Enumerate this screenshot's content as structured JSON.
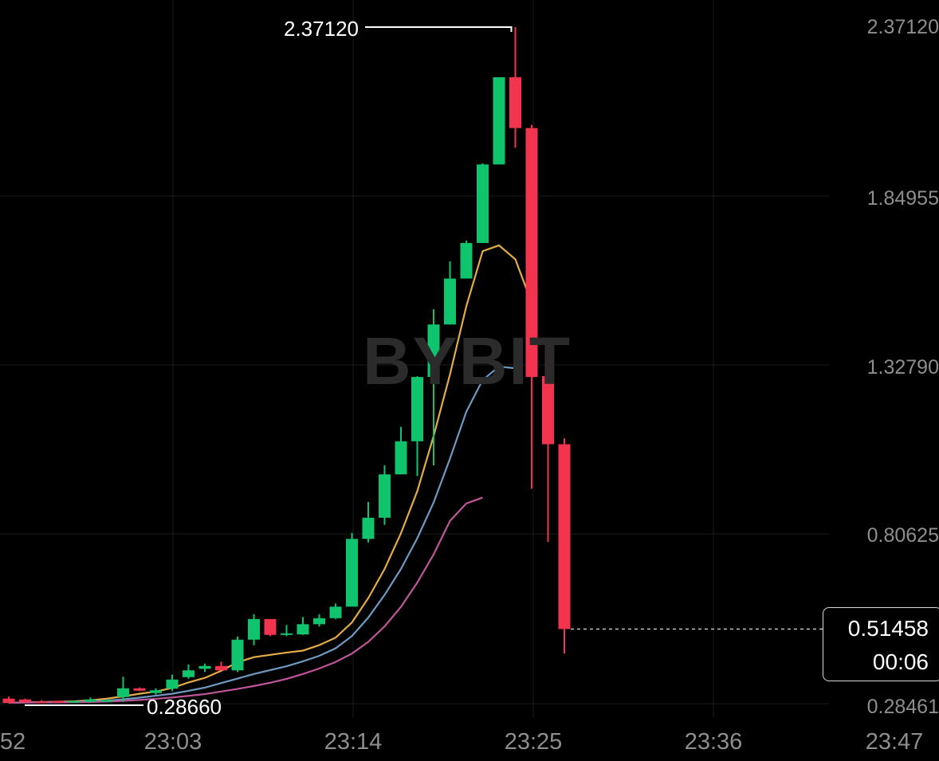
{
  "watermark": "BYBIT",
  "chart_data": {
    "type": "candlestick",
    "price_axis": [
      "2.37120",
      "1.84955",
      "1.32790",
      "0.80625",
      "0.28461"
    ],
    "time_axis": [
      "52",
      "23:03",
      "23:14",
      "23:25",
      "23:36",
      "23:47"
    ],
    "ylim": [
      0.28461,
      2.3712
    ],
    "grid": true,
    "annotations": {
      "high": "2.37120",
      "low": "0.28660"
    },
    "last_price": {
      "value": "0.51458",
      "countdown": "00:06"
    },
    "colors": {
      "up": "#10c46e",
      "down": "#f2344f",
      "ma_fast": "#e5ac44",
      "ma_mid": "#6d9bc3",
      "ma_slow": "#c0569a"
    },
    "candles": [
      {
        "o": 0.3001,
        "h": 0.3061,
        "l": 0.2866,
        "c": 0.2866
      },
      {
        "o": 0.2976,
        "h": 0.3001,
        "l": 0.2866,
        "c": 0.2902
      },
      {
        "o": 0.2914,
        "h": 0.2951,
        "l": 0.2878,
        "c": 0.289
      },
      {
        "o": 0.2927,
        "h": 0.2939,
        "l": 0.289,
        "c": 0.2914
      },
      {
        "o": 0.2902,
        "h": 0.2939,
        "l": 0.289,
        "c": 0.2927
      },
      {
        "o": 0.2902,
        "h": 0.3037,
        "l": 0.289,
        "c": 0.2976
      },
      {
        "o": 0.2939,
        "h": 0.2988,
        "l": 0.2914,
        "c": 0.2951
      },
      {
        "o": 0.3049,
        "h": 0.3675,
        "l": 0.2902,
        "c": 0.3319
      },
      {
        "o": 0.3319,
        "h": 0.3343,
        "l": 0.3232,
        "c": 0.3245
      },
      {
        "o": 0.3172,
        "h": 0.3319,
        "l": 0.3122,
        "c": 0.3257
      },
      {
        "o": 0.3306,
        "h": 0.3737,
        "l": 0.3233,
        "c": 0.3589
      },
      {
        "o": 0.3663,
        "h": 0.4056,
        "l": 0.3614,
        "c": 0.3872
      },
      {
        "o": 0.3921,
        "h": 0.4081,
        "l": 0.3823,
        "c": 0.4007
      },
      {
        "o": 0.4007,
        "h": 0.4142,
        "l": 0.3896,
        "c": 0.3872
      },
      {
        "o": 0.3872,
        "h": 0.4916,
        "l": 0.3823,
        "c": 0.4818
      },
      {
        "o": 0.4818,
        "h": 0.5603,
        "l": 0.4646,
        "c": 0.5456
      },
      {
        "o": 0.5456,
        "h": 0.5444,
        "l": 0.4929,
        "c": 0.4966
      },
      {
        "o": 0.4979,
        "h": 0.5272,
        "l": 0.4929,
        "c": 0.5014
      },
      {
        "o": 0.4979,
        "h": 0.5517,
        "l": 0.4966,
        "c": 0.5296
      },
      {
        "o": 0.5296,
        "h": 0.5603,
        "l": 0.5223,
        "c": 0.5481
      },
      {
        "o": 0.5481,
        "h": 0.5935,
        "l": 0.5456,
        "c": 0.5837
      },
      {
        "o": 0.5837,
        "h": 0.8111,
        "l": 0.5861,
        "c": 0.7926
      },
      {
        "o": 0.7926,
        "h": 0.9067,
        "l": 0.7816,
        "c": 0.8579
      },
      {
        "o": 0.8579,
        "h": 1.0195,
        "l": 0.8359,
        "c": 0.9917
      },
      {
        "o": 0.9917,
        "h": 1.1384,
        "l": 0.9917,
        "c": 1.0938
      },
      {
        "o": 1.0938,
        "h": 1.2945,
        "l": 0.9867,
        "c": 1.292
      },
      {
        "o": 1.292,
        "h": 1.5012,
        "l": 1.0195,
        "c": 1.454
      },
      {
        "o": 1.454,
        "h": 1.6489,
        "l": 1.454,
        "c": 1.5957
      },
      {
        "o": 1.5957,
        "h": 1.7126,
        "l": 1.5957,
        "c": 1.7053
      },
      {
        "o": 1.7053,
        "h": 1.9513,
        "l": 1.7126,
        "c": 1.9476
      },
      {
        "o": 1.9476,
        "h": 2.2166,
        "l": 1.9476,
        "c": 2.2166
      },
      {
        "o": 2.2166,
        "h": 2.3712,
        "l": 1.9993,
        "c": 2.0598
      },
      {
        "o": 2.0598,
        "h": 2.0698,
        "l": 0.9474,
        "c": 1.292
      },
      {
        "o": 1.2946,
        "h": 1.3094,
        "l": 0.7828,
        "c": 1.0847
      },
      {
        "o": 1.0847,
        "h": 1.1027,
        "l": 0.4388,
        "c": 0.5146
      }
    ],
    "ma_series": [
      {
        "values": [
          0.288,
          0.2885,
          0.2895,
          0.2905,
          0.2918,
          0.295,
          0.3,
          0.307,
          0.315,
          0.322,
          0.333,
          0.35,
          0.364,
          0.386,
          0.412,
          0.428,
          0.435,
          0.442,
          0.448,
          0.465,
          0.488,
          0.535,
          0.61,
          0.7,
          0.81,
          0.94,
          1.11,
          1.3,
          1.51,
          1.68,
          1.698,
          1.655,
          1.521
        ]
      },
      {
        "values": [
          0.288,
          0.2882,
          0.2888,
          0.2893,
          0.29,
          0.2915,
          0.294,
          0.298,
          0.303,
          0.309,
          0.315,
          0.324,
          0.334,
          0.348,
          0.362,
          0.376,
          0.388,
          0.4,
          0.415,
          0.432,
          0.455,
          0.493,
          0.55,
          0.62,
          0.7,
          0.795,
          0.905,
          1.04,
          1.185,
          1.283,
          1.324,
          1.319
        ]
      },
      {
        "values": [
          0.288,
          0.2881,
          0.2884,
          0.2887,
          0.2891,
          0.2898,
          0.291,
          0.293,
          0.296,
          0.2995,
          0.3035,
          0.3085,
          0.314,
          0.322,
          0.33,
          0.339,
          0.349,
          0.361,
          0.376,
          0.393,
          0.413,
          0.439,
          0.475,
          0.523,
          0.583,
          0.658,
          0.745,
          0.848,
          0.902,
          0.92
        ]
      }
    ]
  }
}
